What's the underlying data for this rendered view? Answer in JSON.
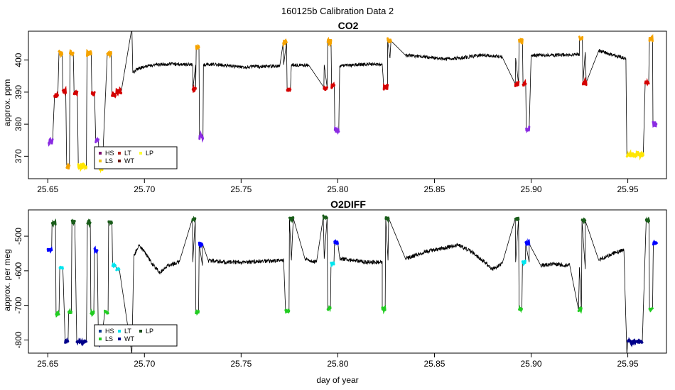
{
  "figure": {
    "title": "160125b   Calibration Data 2",
    "xlabel": "day of year"
  },
  "chart_data": [
    {
      "type": "scatter",
      "title": "CO2",
      "ylabel": "approx. ppm",
      "xlim": [
        25.64,
        25.97
      ],
      "ylim": [
        363,
        409
      ],
      "xticks": [
        {
          "value": 25.65,
          "label": "25.65"
        },
        {
          "value": 25.7,
          "label": "25.70"
        },
        {
          "value": 25.75,
          "label": "25.75"
        },
        {
          "value": 25.8,
          "label": "25.80"
        },
        {
          "value": 25.85,
          "label": "25.85"
        },
        {
          "value": 25.9,
          "label": "25.90"
        },
        {
          "value": 25.95,
          "label": "25.95"
        }
      ],
      "yticks": [
        {
          "value": 370,
          "label": "370"
        },
        {
          "value": 380,
          "label": "380"
        },
        {
          "value": 390,
          "label": "390"
        },
        {
          "value": 400,
          "label": "400"
        }
      ],
      "legend": {
        "placement": "bottom-left",
        "items": [
          {
            "label": "HS",
            "color": "#7a0c6b"
          },
          {
            "label": "LS",
            "color": "#f0c419"
          },
          {
            "label": "LT",
            "color": "#b5211a"
          },
          {
            "label": "WT",
            "color": "#6b1a14"
          },
          {
            "label": "LP",
            "color": "#ffff33"
          }
        ]
      },
      "ambient_line": [
        [
          25.6935,
          410
        ],
        [
          25.694,
          396
        ],
        [
          25.697,
          397.5
        ],
        [
          25.705,
          398.5
        ],
        [
          25.715,
          398.8
        ],
        [
          25.725,
          398.5
        ],
        [
          25.7265,
          398.5
        ],
        [
          25.7305,
          398.5
        ],
        [
          25.738,
          398.6
        ],
        [
          25.75,
          397.8
        ],
        [
          25.76,
          398
        ],
        [
          25.77,
          398.2
        ],
        [
          25.772,
          398.5
        ],
        [
          25.776,
          398.5
        ],
        [
          25.785,
          398.4
        ],
        [
          25.793,
          398.5
        ],
        [
          25.801,
          398.2
        ],
        [
          25.808,
          398.4
        ],
        [
          25.817,
          398.8
        ],
        [
          25.823,
          398.6
        ],
        [
          25.827,
          400.6
        ],
        [
          25.835,
          401.5
        ],
        [
          25.845,
          401.0
        ],
        [
          25.855,
          400.3
        ],
        [
          25.865,
          400.8
        ],
        [
          25.875,
          401.6
        ],
        [
          25.885,
          401.0
        ],
        [
          25.892,
          400.6
        ],
        [
          25.9,
          401.5
        ],
        [
          25.91,
          401.5
        ],
        [
          25.92,
          401.6
        ],
        [
          25.925,
          401.8
        ],
        [
          25.928,
          402.5
        ],
        [
          25.935,
          403.0
        ],
        [
          25.942,
          401.6
        ],
        [
          25.949,
          400.5
        ]
      ],
      "segments": [
        {
          "x0": 25.6505,
          "x1": 25.6525,
          "y": 374.5,
          "color": "#8a2be2"
        },
        {
          "x0": 25.6535,
          "x1": 25.6552,
          "y": 389.0,
          "color": "#d40000"
        },
        {
          "x0": 25.6558,
          "x1": 25.6575,
          "y": 402.2,
          "color": "#f5a300"
        },
        {
          "x0": 25.6578,
          "x1": 25.6593,
          "y": 390.2,
          "color": "#d40000"
        },
        {
          "x0": 25.6598,
          "x1": 25.6612,
          "y": 366.5,
          "color": "#f5a300"
        },
        {
          "x0": 25.6615,
          "x1": 25.6632,
          "y": 402.2,
          "color": "#f5a300"
        },
        {
          "x0": 25.6636,
          "x1": 25.6653,
          "y": 389.8,
          "color": "#d40000"
        },
        {
          "x0": 25.6658,
          "x1": 25.67,
          "y": 366.8,
          "color": "#ffe600"
        },
        {
          "x0": 25.6703,
          "x1": 25.6725,
          "y": 402.0,
          "color": "#f5a300"
        },
        {
          "x0": 25.6728,
          "x1": 25.6742,
          "y": 389.5,
          "color": "#d40000"
        },
        {
          "x0": 25.6748,
          "x1": 25.6762,
          "y": 375.0,
          "color": "#8a2be2"
        },
        {
          "x0": 25.6768,
          "x1": 25.6782,
          "y": 366.3,
          "color": "#ffe600"
        },
        {
          "x0": 25.6808,
          "x1": 25.6828,
          "y": 402.0,
          "color": "#f5a300"
        },
        {
          "x0": 25.6832,
          "x1": 25.685,
          "y": 389.3,
          "color": "#d40000"
        },
        {
          "x0": 25.6855,
          "x1": 25.688,
          "y": 390.2,
          "color": "#d40000"
        },
        {
          "x0": 25.725,
          "x1": 25.7265,
          "y": 390.8,
          "color": "#d40000"
        },
        {
          "x0": 25.7268,
          "x1": 25.7282,
          "y": 404.0,
          "color": "#f5a300"
        },
        {
          "x0": 25.7285,
          "x1": 25.7303,
          "y": 376.2,
          "color": "#8a2be2"
        },
        {
          "x0": 25.7718,
          "x1": 25.7735,
          "y": 405.5,
          "color": "#f5a300"
        },
        {
          "x0": 25.7738,
          "x1": 25.7755,
          "y": 391.0,
          "color": "#d40000"
        },
        {
          "x0": 25.7928,
          "x1": 25.7945,
          "y": 391.5,
          "color": "#d40000"
        },
        {
          "x0": 25.7948,
          "x1": 25.7965,
          "y": 405.8,
          "color": "#f5a300"
        },
        {
          "x0": 25.7968,
          "x1": 25.7982,
          "y": 392.0,
          "color": "#d40000"
        },
        {
          "x0": 25.7985,
          "x1": 25.8005,
          "y": 378.0,
          "color": "#8a2be2"
        },
        {
          "x0": 25.8238,
          "x1": 25.8258,
          "y": 391.5,
          "color": "#d40000"
        },
        {
          "x0": 25.8258,
          "x1": 25.8275,
          "y": 406.0,
          "color": "#f5a300"
        },
        {
          "x0": 25.8918,
          "x1": 25.8935,
          "y": 392.5,
          "color": "#d40000"
        },
        {
          "x0": 25.8938,
          "x1": 25.8955,
          "y": 406.0,
          "color": "#f5a300"
        },
        {
          "x0": 25.8958,
          "x1": 25.8972,
          "y": 392.5,
          "color": "#d40000"
        },
        {
          "x0": 25.8975,
          "x1": 25.899,
          "y": 378.5,
          "color": "#8a2be2"
        },
        {
          "x0": 25.925,
          "x1": 25.9265,
          "y": 406.5,
          "color": "#f5a300"
        },
        {
          "x0": 25.9268,
          "x1": 25.9285,
          "y": 393.0,
          "color": "#d40000"
        },
        {
          "x0": 25.9495,
          "x1": 25.958,
          "y": 370.5,
          "color": "#ffe600"
        },
        {
          "x0": 25.959,
          "x1": 25.9608,
          "y": 393.0,
          "color": "#d40000"
        },
        {
          "x0": 25.9612,
          "x1": 25.9628,
          "y": 406.5,
          "color": "#f5a300"
        },
        {
          "x0": 25.963,
          "x1": 25.9648,
          "y": 380.0,
          "color": "#8a2be2"
        }
      ]
    },
    {
      "type": "scatter",
      "title": "O2DIFF",
      "ylabel": "approx. per meg",
      "xlim": [
        25.64,
        25.97
      ],
      "ylim": [
        -838,
        -424
      ],
      "xticks": [
        {
          "value": 25.65,
          "label": "25.65"
        },
        {
          "value": 25.7,
          "label": "25.70"
        },
        {
          "value": 25.75,
          "label": "25.75"
        },
        {
          "value": 25.8,
          "label": "25.80"
        },
        {
          "value": 25.85,
          "label": "25.85"
        },
        {
          "value": 25.9,
          "label": "25.90"
        },
        {
          "value": 25.95,
          "label": "25.95"
        }
      ],
      "yticks": [
        {
          "value": -800,
          "label": "-800"
        },
        {
          "value": -700,
          "label": "-700"
        },
        {
          "value": -600,
          "label": "-600"
        },
        {
          "value": -500,
          "label": "-500"
        }
      ],
      "legend": {
        "placement": "bottom-left",
        "items": [
          {
            "label": "HS",
            "color": "#0b3d91"
          },
          {
            "label": "LS",
            "color": "#22cc22"
          },
          {
            "label": "LT",
            "color": "#00e5ee"
          },
          {
            "label": "WT",
            "color": "#00008b"
          },
          {
            "label": "LP",
            "color": "#1a4d1a"
          }
        ]
      },
      "ambient_line": [
        [
          25.6935,
          -840
        ],
        [
          25.6945,
          -560
        ],
        [
          25.697,
          -525
        ],
        [
          25.7,
          -545
        ],
        [
          25.704,
          -580
        ],
        [
          25.708,
          -605
        ],
        [
          25.712,
          -585
        ],
        [
          25.718,
          -575
        ],
        [
          25.725,
          -575
        ],
        [
          25.73,
          -585
        ],
        [
          25.733,
          -570
        ],
        [
          25.742,
          -575
        ],
        [
          25.752,
          -575
        ],
        [
          25.762,
          -572
        ],
        [
          25.772,
          -570
        ],
        [
          25.776,
          -570
        ],
        [
          25.783,
          -565
        ],
        [
          25.789,
          -575
        ],
        [
          25.793,
          -565
        ],
        [
          25.801,
          -565
        ],
        [
          25.808,
          -570
        ],
        [
          25.815,
          -575
        ],
        [
          25.823,
          -575
        ],
        [
          25.826,
          -570
        ],
        [
          25.835,
          -565
        ],
        [
          25.845,
          -545
        ],
        [
          25.855,
          -535
        ],
        [
          25.862,
          -525
        ],
        [
          25.868,
          -540
        ],
        [
          25.875,
          -570
        ],
        [
          25.88,
          -595
        ],
        [
          25.885,
          -580
        ],
        [
          25.892,
          -575
        ],
        [
          25.899,
          -575
        ],
        [
          25.905,
          -585
        ],
        [
          25.912,
          -580
        ],
        [
          25.92,
          -585
        ],
        [
          25.925,
          -590
        ],
        [
          25.928,
          -595
        ],
        [
          25.935,
          -570
        ],
        [
          25.942,
          -550
        ],
        [
          25.948,
          -540
        ],
        [
          25.9495,
          -840
        ]
      ],
      "segments": [
        {
          "x0": 25.65,
          "x1": 25.652,
          "y": -540,
          "color": "#0000ff"
        },
        {
          "x0": 25.6522,
          "x1": 25.654,
          "y": -462,
          "color": "#1a5d1a"
        },
        {
          "x0": 25.6543,
          "x1": 25.6558,
          "y": -725,
          "color": "#22cc22"
        },
        {
          "x0": 25.6562,
          "x1": 25.6578,
          "y": -590,
          "color": "#00e5ee"
        },
        {
          "x0": 25.659,
          "x1": 25.6605,
          "y": -805,
          "color": "#00008b"
        },
        {
          "x0": 25.6608,
          "x1": 25.6622,
          "y": -720,
          "color": "#22cc22"
        },
        {
          "x0": 25.6625,
          "x1": 25.664,
          "y": -458,
          "color": "#1a5d1a"
        },
        {
          "x0": 25.665,
          "x1": 25.67,
          "y": -805,
          "color": "#00008b"
        },
        {
          "x0": 25.6705,
          "x1": 25.672,
          "y": -460,
          "color": "#1a5d1a"
        },
        {
          "x0": 25.6723,
          "x1": 25.6738,
          "y": -722,
          "color": "#22cc22"
        },
        {
          "x0": 25.6742,
          "x1": 25.6756,
          "y": -540,
          "color": "#0000ff"
        },
        {
          "x0": 25.6762,
          "x1": 25.6776,
          "y": -808,
          "color": "#00008b"
        },
        {
          "x0": 25.6795,
          "x1": 25.6812,
          "y": -720,
          "color": "#22cc22"
        },
        {
          "x0": 25.6815,
          "x1": 25.6832,
          "y": -460,
          "color": "#1a5d1a"
        },
        {
          "x0": 25.6835,
          "x1": 25.685,
          "y": -582,
          "color": "#00e5ee"
        },
        {
          "x0": 25.6855,
          "x1": 25.687,
          "y": -595,
          "color": "#00e5ee"
        },
        {
          "x0": 25.7248,
          "x1": 25.7263,
          "y": -450,
          "color": "#1a5d1a"
        },
        {
          "x0": 25.7266,
          "x1": 25.728,
          "y": -720,
          "color": "#22cc22"
        },
        {
          "x0": 25.7283,
          "x1": 25.73,
          "y": -522,
          "color": "#0000ff"
        },
        {
          "x0": 25.773,
          "x1": 25.7748,
          "y": -715,
          "color": "#22cc22"
        },
        {
          "x0": 25.775,
          "x1": 25.777,
          "y": -448,
          "color": "#1a5d1a"
        },
        {
          "x0": 25.7925,
          "x1": 25.7945,
          "y": -445,
          "color": "#1a5d1a"
        },
        {
          "x0": 25.7948,
          "x1": 25.7962,
          "y": -708,
          "color": "#22cc22"
        },
        {
          "x0": 25.7965,
          "x1": 25.798,
          "y": -578,
          "color": "#00e5ee"
        },
        {
          "x0": 25.7983,
          "x1": 25.8,
          "y": -518,
          "color": "#0000ff"
        },
        {
          "x0": 25.823,
          "x1": 25.8245,
          "y": -710,
          "color": "#22cc22"
        },
        {
          "x0": 25.8248,
          "x1": 25.8263,
          "y": -448,
          "color": "#1a5d1a"
        },
        {
          "x0": 25.8918,
          "x1": 25.8935,
          "y": -448,
          "color": "#1a5d1a"
        },
        {
          "x0": 25.8938,
          "x1": 25.8952,
          "y": -710,
          "color": "#22cc22"
        },
        {
          "x0": 25.8955,
          "x1": 25.897,
          "y": -575,
          "color": "#00e5ee"
        },
        {
          "x0": 25.8972,
          "x1": 25.899,
          "y": -522,
          "color": "#0000ff"
        },
        {
          "x0": 25.9245,
          "x1": 25.926,
          "y": -712,
          "color": "#22cc22"
        },
        {
          "x0": 25.9263,
          "x1": 25.928,
          "y": -455,
          "color": "#1a5d1a"
        },
        {
          "x0": 25.95,
          "x1": 25.9575,
          "y": -805,
          "color": "#00008b"
        },
        {
          "x0": 25.9595,
          "x1": 25.961,
          "y": -455,
          "color": "#1a5d1a"
        },
        {
          "x0": 25.9612,
          "x1": 25.9628,
          "y": -710,
          "color": "#22cc22"
        },
        {
          "x0": 25.9632,
          "x1": 25.965,
          "y": -520,
          "color": "#0000ff"
        }
      ]
    }
  ]
}
